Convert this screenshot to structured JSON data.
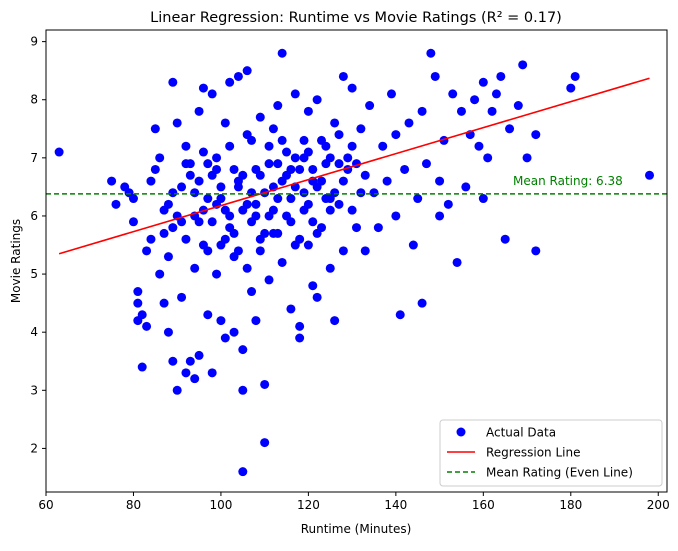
{
  "chart_data": {
    "type": "scatter",
    "title": "Linear Regression: Runtime vs Movie Ratings (R² = 0.17)",
    "xlabel": "Runtime (Minutes)",
    "ylabel": "Movie Ratings",
    "xlim": [
      60,
      202
    ],
    "ylim": [
      1.25,
      9.2
    ],
    "xticks": [
      60,
      80,
      100,
      120,
      140,
      160,
      180,
      200
    ],
    "yticks": [
      2,
      3,
      4,
      5,
      6,
      7,
      8,
      9
    ],
    "grid": false,
    "legend_position": "bottom-right",
    "colors": {
      "points": "#0000ff",
      "regression": "#ff0000",
      "mean": "#008000"
    },
    "series": [
      {
        "name": "Actual Data",
        "kind": "scatter",
        "points": [
          [
            63,
            7.1
          ],
          [
            75,
            6.6
          ],
          [
            76,
            6.2
          ],
          [
            78,
            6.5
          ],
          [
            79,
            6.4
          ],
          [
            80,
            6.3
          ],
          [
            80,
            5.9
          ],
          [
            81,
            4.7
          ],
          [
            81,
            4.5
          ],
          [
            81,
            4.2
          ],
          [
            82,
            4.3
          ],
          [
            82,
            3.4
          ],
          [
            83,
            4.1
          ],
          [
            83,
            5.4
          ],
          [
            84,
            5.6
          ],
          [
            84,
            6.6
          ],
          [
            85,
            6.8
          ],
          [
            85,
            7.5
          ],
          [
            86,
            7.0
          ],
          [
            86,
            5.0
          ],
          [
            87,
            4.5
          ],
          [
            87,
            6.1
          ],
          [
            88,
            4.0
          ],
          [
            88,
            5.3
          ],
          [
            89,
            8.3
          ],
          [
            89,
            5.8
          ],
          [
            89,
            3.5
          ],
          [
            90,
            3.0
          ],
          [
            90,
            7.6
          ],
          [
            91,
            6.5
          ],
          [
            91,
            4.6
          ],
          [
            92,
            3.3
          ],
          [
            92,
            7.2
          ],
          [
            93,
            3.5
          ],
          [
            93,
            6.9
          ],
          [
            94,
            3.2
          ],
          [
            94,
            6.0
          ],
          [
            95,
            3.6
          ],
          [
            95,
            7.8
          ],
          [
            96,
            8.2
          ],
          [
            96,
            5.5
          ],
          [
            97,
            6.3
          ],
          [
            97,
            4.3
          ],
          [
            98,
            3.3
          ],
          [
            98,
            8.1
          ],
          [
            99,
            5.0
          ],
          [
            99,
            7.0
          ],
          [
            100,
            4.2
          ],
          [
            100,
            6.5
          ],
          [
            101,
            3.9
          ],
          [
            101,
            7.6
          ],
          [
            102,
            6.0
          ],
          [
            102,
            8.3
          ],
          [
            103,
            4.0
          ],
          [
            103,
            5.7
          ],
          [
            104,
            8.4
          ],
          [
            104,
            6.6
          ],
          [
            105,
            3.0
          ],
          [
            105,
            3.7
          ],
          [
            105,
            1.6
          ],
          [
            106,
            8.5
          ],
          [
            106,
            5.1
          ],
          [
            107,
            4.7
          ],
          [
            107,
            7.3
          ],
          [
            108,
            6.2
          ],
          [
            108,
            4.2
          ],
          [
            109,
            7.7
          ],
          [
            109,
            5.4
          ],
          [
            110,
            3.1
          ],
          [
            110,
            2.1
          ],
          [
            111,
            4.9
          ],
          [
            111,
            6.9
          ],
          [
            112,
            7.5
          ],
          [
            112,
            5.7
          ],
          [
            113,
            6.3
          ],
          [
            113,
            7.9
          ],
          [
            114,
            5.2
          ],
          [
            114,
            8.8
          ],
          [
            115,
            6.7
          ],
          [
            116,
            4.4
          ],
          [
            116,
            5.9
          ],
          [
            117,
            8.1
          ],
          [
            117,
            7.0
          ],
          [
            118,
            4.1
          ],
          [
            118,
            3.9
          ],
          [
            119,
            6.4
          ],
          [
            119,
            7.3
          ],
          [
            120,
            5.5
          ],
          [
            120,
            7.8
          ],
          [
            121,
            4.8
          ],
          [
            121,
            6.6
          ],
          [
            122,
            4.6
          ],
          [
            122,
            8.0
          ],
          [
            123,
            5.8
          ],
          [
            124,
            7.2
          ],
          [
            125,
            5.1
          ],
          [
            125,
            6.3
          ],
          [
            126,
            4.2
          ],
          [
            126,
            7.6
          ],
          [
            127,
            6.9
          ],
          [
            128,
            5.4
          ],
          [
            128,
            8.4
          ],
          [
            129,
            7.0
          ],
          [
            130,
            6.1
          ],
          [
            130,
            8.2
          ],
          [
            131,
            5.8
          ],
          [
            132,
            7.5
          ],
          [
            133,
            5.4
          ],
          [
            133,
            6.7
          ],
          [
            134,
            7.9
          ],
          [
            135,
            6.4
          ],
          [
            136,
            5.8
          ],
          [
            137,
            7.2
          ],
          [
            138,
            6.6
          ],
          [
            139,
            8.1
          ],
          [
            140,
            6.0
          ],
          [
            140,
            7.4
          ],
          [
            141,
            4.3
          ],
          [
            142,
            6.8
          ],
          [
            143,
            7.6
          ],
          [
            144,
            5.5
          ],
          [
            145,
            6.3
          ],
          [
            146,
            4.5
          ],
          [
            146,
            7.8
          ],
          [
            147,
            6.9
          ],
          [
            148,
            8.8
          ],
          [
            149,
            8.4
          ],
          [
            150,
            6.0
          ],
          [
            150,
            6.6
          ],
          [
            151,
            7.3
          ],
          [
            152,
            6.2
          ],
          [
            153,
            8.1
          ],
          [
            154,
            5.2
          ],
          [
            155,
            7.8
          ],
          [
            156,
            6.5
          ],
          [
            157,
            7.4
          ],
          [
            158,
            8.0
          ],
          [
            159,
            7.2
          ],
          [
            160,
            6.3
          ],
          [
            160,
            8.3
          ],
          [
            161,
            7.0
          ],
          [
            162,
            7.8
          ],
          [
            163,
            8.1
          ],
          [
            164,
            8.4
          ],
          [
            165,
            5.6
          ],
          [
            166,
            7.5
          ],
          [
            168,
            7.9
          ],
          [
            169,
            8.6
          ],
          [
            170,
            7.0
          ],
          [
            172,
            5.4
          ],
          [
            172,
            7.4
          ],
          [
            180,
            8.2
          ],
          [
            181,
            8.4
          ],
          [
            198,
            6.7
          ],
          [
            88,
            6.2
          ],
          [
            90,
            6.0
          ],
          [
            92,
            5.6
          ],
          [
            94,
            6.4
          ],
          [
            96,
            6.1
          ],
          [
            98,
            5.9
          ],
          [
            100,
            6.3
          ],
          [
            102,
            5.8
          ],
          [
            104,
            6.5
          ],
          [
            106,
            6.2
          ],
          [
            108,
            6.0
          ],
          [
            110,
            6.4
          ],
          [
            112,
            6.1
          ],
          [
            114,
            6.6
          ],
          [
            116,
            6.3
          ],
          [
            118,
            6.8
          ],
          [
            120,
            6.2
          ],
          [
            122,
            6.5
          ],
          [
            124,
            6.9
          ],
          [
            126,
            6.4
          ],
          [
            93,
            6.7
          ],
          [
            95,
            5.9
          ],
          [
            97,
            6.9
          ],
          [
            99,
            6.2
          ],
          [
            101,
            5.6
          ],
          [
            103,
            6.8
          ],
          [
            105,
            6.1
          ],
          [
            107,
            5.9
          ],
          [
            109,
            6.7
          ],
          [
            111,
            6.0
          ],
          [
            113,
            6.9
          ],
          [
            115,
            7.1
          ],
          [
            117,
            6.5
          ],
          [
            119,
            7.0
          ],
          [
            121,
            6.8
          ],
          [
            123,
            6.6
          ],
          [
            125,
            7.0
          ],
          [
            127,
            6.2
          ],
          [
            129,
            6.8
          ],
          [
            131,
            6.9
          ],
          [
            87,
            5.7
          ],
          [
            89,
            6.4
          ],
          [
            91,
            5.9
          ],
          [
            95,
            6.6
          ],
          [
            97,
            5.4
          ],
          [
            99,
            6.8
          ],
          [
            101,
            6.1
          ],
          [
            103,
            5.3
          ],
          [
            105,
            6.7
          ],
          [
            107,
            6.4
          ],
          [
            109,
            5.6
          ],
          [
            111,
            7.2
          ],
          [
            113,
            5.7
          ],
          [
            115,
            6.0
          ],
          [
            117,
            5.5
          ],
          [
            119,
            6.1
          ],
          [
            121,
            5.9
          ],
          [
            123,
            7.3
          ],
          [
            125,
            6.1
          ],
          [
            127,
            7.4
          ],
          [
            92,
            6.9
          ],
          [
            94,
            5.1
          ],
          [
            96,
            7.1
          ],
          [
            98,
            6.7
          ],
          [
            100,
            5.5
          ],
          [
            102,
            7.2
          ],
          [
            104,
            5.4
          ],
          [
            106,
            7.4
          ],
          [
            108,
            6.8
          ],
          [
            110,
            5.7
          ],
          [
            112,
            6.5
          ],
          [
            114,
            7.3
          ],
          [
            116,
            6.8
          ],
          [
            118,
            5.6
          ],
          [
            120,
            7.1
          ],
          [
            122,
            5.7
          ],
          [
            124,
            6.3
          ],
          [
            128,
            6.6
          ],
          [
            130,
            7.2
          ],
          [
            132,
            6.4
          ]
        ]
      },
      {
        "name": "Regression Line",
        "kind": "line",
        "points": [
          [
            63,
            5.35
          ],
          [
            198,
            8.37
          ]
        ]
      },
      {
        "name": "Mean Rating (Even Line)",
        "kind": "hline",
        "y": 6.38
      }
    ],
    "annotations": [
      {
        "text": "Mean Rating: 6.38",
        "x": 168,
        "y": 6.55
      }
    ]
  }
}
